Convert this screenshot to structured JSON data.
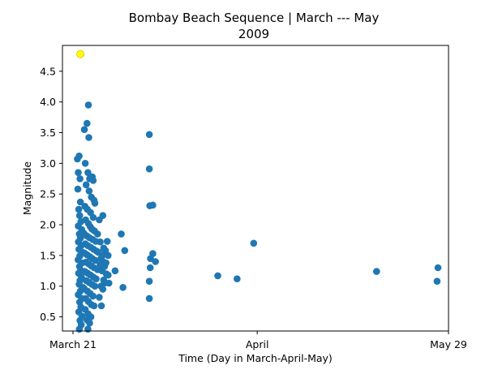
{
  "chart_data": {
    "type": "scatter",
    "title_line1": "Bombay Beach Sequence | March --- May",
    "title_line2": "2009",
    "xlabel": "Time (Day in March-April-May)",
    "ylabel": "Magnitude",
    "x_ticks": [
      {
        "label": "March 21",
        "day": 0
      },
      {
        "label": "April",
        "day": 10.5
      },
      {
        "label": "May 29",
        "day": 21.4
      }
    ],
    "xlim": [
      -0.6,
      21.4
    ],
    "ylim": [
      0.27,
      4.92
    ],
    "y_ticks": [
      0.5,
      1.0,
      1.5,
      2.0,
      2.5,
      3.0,
      3.5,
      4.0,
      4.5
    ],
    "grid": false,
    "colors": {
      "events": "#1f77b4",
      "mainshock": "#ffff00",
      "mainshock_edge": "#d4c000"
    },
    "mainshock": {
      "day": 0.42,
      "magnitude": 4.78
    },
    "series": [
      {
        "values": [
          [
            0.25,
            3.07
          ],
          [
            0.35,
            3.12
          ],
          [
            0.3,
            2.85
          ],
          [
            0.4,
            2.75
          ],
          [
            0.28,
            2.58
          ],
          [
            0.42,
            2.37
          ],
          [
            0.33,
            2.25
          ],
          [
            0.38,
            2.15
          ],
          [
            0.45,
            2.05
          ],
          [
            0.3,
            1.98
          ],
          [
            0.5,
            1.92
          ],
          [
            0.36,
            1.85
          ],
          [
            0.42,
            1.78
          ],
          [
            0.31,
            1.72
          ],
          [
            0.47,
            1.66
          ],
          [
            0.34,
            1.6
          ],
          [
            0.55,
            1.55
          ],
          [
            0.39,
            1.49
          ],
          [
            0.29,
            1.43
          ],
          [
            0.52,
            1.38
          ],
          [
            0.37,
            1.32
          ],
          [
            0.44,
            1.26
          ],
          [
            0.32,
            1.21
          ],
          [
            0.48,
            1.15
          ],
          [
            0.4,
            1.09
          ],
          [
            0.35,
            1.03
          ],
          [
            0.57,
            0.98
          ],
          [
            0.42,
            0.92
          ],
          [
            0.3,
            0.86
          ],
          [
            0.5,
            0.8
          ],
          [
            0.38,
            0.74
          ],
          [
            0.45,
            0.66
          ],
          [
            0.33,
            0.58
          ],
          [
            0.52,
            0.51
          ],
          [
            0.4,
            0.44
          ],
          [
            0.47,
            0.37
          ],
          [
            0.36,
            0.3
          ],
          [
            0.65,
            3.55
          ],
          [
            0.8,
            3.65
          ],
          [
            0.88,
            3.95
          ],
          [
            0.9,
            3.42
          ],
          [
            0.7,
            3.0
          ],
          [
            0.85,
            2.85
          ],
          [
            0.95,
            2.75
          ],
          [
            1.1,
            2.78
          ],
          [
            1.15,
            2.72
          ],
          [
            0.75,
            2.65
          ],
          [
            0.92,
            2.55
          ],
          [
            1.05,
            2.45
          ],
          [
            1.2,
            2.4
          ],
          [
            1.25,
            2.35
          ],
          [
            0.68,
            2.3
          ],
          [
            0.82,
            2.25
          ],
          [
            1.0,
            2.2
          ],
          [
            1.15,
            2.12
          ],
          [
            0.72,
            2.08
          ],
          [
            0.88,
            2.02
          ],
          [
            0.98,
            1.97
          ],
          [
            1.08,
            1.93
          ],
          [
            1.22,
            1.9
          ],
          [
            0.62,
            1.86
          ],
          [
            0.78,
            1.82
          ],
          [
            0.93,
            1.79
          ],
          [
            1.12,
            1.76
          ],
          [
            1.3,
            1.73
          ],
          [
            0.7,
            1.69
          ],
          [
            0.85,
            1.66
          ],
          [
            1.02,
            1.63
          ],
          [
            1.18,
            1.6
          ],
          [
            1.35,
            1.57
          ],
          [
            0.66,
            1.54
          ],
          [
            0.8,
            1.51
          ],
          [
            0.96,
            1.48
          ],
          [
            1.1,
            1.45
          ],
          [
            1.27,
            1.42
          ],
          [
            0.74,
            1.39
          ],
          [
            0.9,
            1.36
          ],
          [
            1.05,
            1.33
          ],
          [
            1.2,
            1.3
          ],
          [
            1.4,
            1.27
          ],
          [
            0.68,
            1.24
          ],
          [
            0.84,
            1.21
          ],
          [
            1.0,
            1.18
          ],
          [
            1.15,
            1.15
          ],
          [
            1.32,
            1.12
          ],
          [
            0.76,
            1.09
          ],
          [
            0.92,
            1.06
          ],
          [
            1.08,
            1.03
          ],
          [
            1.25,
            1.0
          ],
          [
            0.64,
            0.96
          ],
          [
            0.82,
            0.92
          ],
          [
            0.98,
            0.88
          ],
          [
            1.14,
            0.84
          ],
          [
            0.72,
            0.8
          ],
          [
            0.88,
            0.75
          ],
          [
            1.04,
            0.7
          ],
          [
            1.2,
            0.68
          ],
          [
            0.7,
            0.62
          ],
          [
            0.86,
            0.55
          ],
          [
            1.02,
            0.5
          ],
          [
            0.8,
            0.45
          ],
          [
            0.95,
            0.4
          ],
          [
            0.85,
            0.3
          ],
          [
            1.4,
            1.85
          ],
          [
            1.5,
            2.08
          ],
          [
            1.7,
            2.15
          ],
          [
            1.55,
            1.72
          ],
          [
            1.75,
            1.62
          ],
          [
            1.85,
            1.58
          ],
          [
            1.95,
            1.73
          ],
          [
            2.0,
            1.5
          ],
          [
            1.6,
            1.45
          ],
          [
            1.72,
            1.4
          ],
          [
            1.8,
            1.32
          ],
          [
            1.65,
            1.25
          ],
          [
            1.9,
            1.2
          ],
          [
            1.75,
            1.1
          ],
          [
            1.6,
            1.0
          ],
          [
            1.7,
            0.95
          ],
          [
            1.5,
            0.82
          ],
          [
            1.8,
            1.05
          ],
          [
            2.0,
            1.18
          ],
          [
            2.05,
            1.05
          ],
          [
            1.62,
            0.68
          ],
          [
            1.45,
            1.55
          ],
          [
            1.55,
            1.35
          ],
          [
            1.68,
            1.5
          ],
          [
            1.88,
            1.38
          ],
          [
            2.4,
            1.25
          ],
          [
            2.75,
            1.85
          ],
          [
            2.95,
            1.58
          ],
          [
            2.85,
            0.98
          ],
          [
            4.35,
            3.47
          ],
          [
            4.35,
            2.91
          ],
          [
            4.38,
            2.31
          ],
          [
            4.55,
            2.32
          ],
          [
            4.55,
            1.53
          ],
          [
            4.42,
            1.45
          ],
          [
            4.4,
            1.3
          ],
          [
            4.7,
            1.4
          ],
          [
            4.35,
            1.08
          ],
          [
            4.35,
            0.8
          ],
          [
            8.25,
            1.17
          ],
          [
            9.35,
            1.12
          ],
          [
            10.3,
            1.7
          ],
          [
            17.3,
            1.24
          ],
          [
            20.8,
            1.3
          ],
          [
            20.75,
            1.08
          ]
        ]
      }
    ]
  }
}
